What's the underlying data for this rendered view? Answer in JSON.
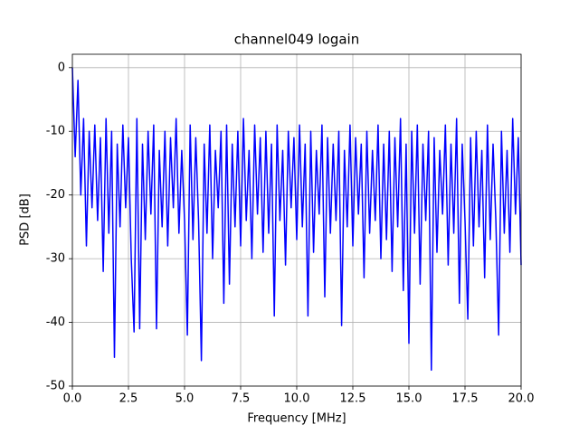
{
  "chart_data": {
    "type": "line",
    "title": "channel049 logain",
    "xlabel": "Frequency [MHz]",
    "ylabel": "PSD [dB]",
    "grid": true,
    "xlim": [
      0,
      20
    ],
    "ylim": [
      -50,
      2.1
    ],
    "xticks": [
      {
        "value": 0,
        "label": "0.0"
      },
      {
        "value": 2.5,
        "label": "2.5"
      },
      {
        "value": 5,
        "label": "5.0"
      },
      {
        "value": 7.5,
        "label": "7.5"
      },
      {
        "value": 10,
        "label": "10.0"
      },
      {
        "value": 12.5,
        "label": "12.5"
      },
      {
        "value": 15,
        "label": "15.0"
      },
      {
        "value": 17.5,
        "label": "17.5"
      },
      {
        "value": 20,
        "label": "20.0"
      }
    ],
    "yticks": [
      0,
      -10,
      -20,
      -30,
      -40,
      -50
    ],
    "x": [
      0,
      0.125,
      0.25,
      0.375,
      0.5,
      0.625,
      0.75,
      0.875,
      1,
      1.125,
      1.25,
      1.375,
      1.5,
      1.625,
      1.75,
      1.875,
      2,
      2.125,
      2.25,
      2.375,
      2.5,
      2.625,
      2.75,
      2.875,
      3,
      3.125,
      3.25,
      3.375,
      3.5,
      3.625,
      3.75,
      3.875,
      4,
      4.125,
      4.25,
      4.375,
      4.5,
      4.625,
      4.75,
      4.875,
      5,
      5.125,
      5.25,
      5.375,
      5.5,
      5.625,
      5.75,
      5.875,
      6,
      6.125,
      6.25,
      6.375,
      6.5,
      6.625,
      6.75,
      6.875,
      7,
      7.125,
      7.25,
      7.375,
      7.5,
      7.625,
      7.75,
      7.875,
      8,
      8.125,
      8.25,
      8.375,
      8.5,
      8.625,
      8.75,
      8.875,
      9,
      9.125,
      9.25,
      9.375,
      9.5,
      9.625,
      9.75,
      9.875,
      10,
      10.125,
      10.25,
      10.375,
      10.5,
      10.625,
      10.75,
      10.875,
      11,
      11.125,
      11.25,
      11.375,
      11.5,
      11.625,
      11.75,
      11.875,
      12,
      12.125,
      12.25,
      12.375,
      12.5,
      12.625,
      12.75,
      12.875,
      13,
      13.125,
      13.25,
      13.375,
      13.5,
      13.625,
      13.75,
      13.875,
      14,
      14.125,
      14.25,
      14.375,
      14.5,
      14.625,
      14.75,
      14.875,
      15,
      15.125,
      15.25,
      15.375,
      15.5,
      15.625,
      15.75,
      15.875,
      16,
      16.125,
      16.25,
      16.375,
      16.5,
      16.625,
      16.75,
      16.875,
      17,
      17.125,
      17.25,
      17.375,
      17.5,
      17.625,
      17.75,
      17.875,
      18,
      18.125,
      18.25,
      18.375,
      18.5,
      18.625,
      18.75,
      18.875,
      19,
      19.125,
      19.25,
      19.375,
      19.5,
      19.625,
      19.75,
      19.875,
      20
    ],
    "series": [
      {
        "color": "#0000ff",
        "values": [
          0,
          -14,
          -2,
          -20,
          -8,
          -28,
          -10,
          -22,
          -9,
          -24,
          -11,
          -32,
          -8,
          -26,
          -10,
          -45.5,
          -12,
          -25,
          -9,
          -22,
          -11,
          -30,
          -41.5,
          -8,
          -41,
          -12,
          -27,
          -10,
          -23,
          -9,
          -41,
          -13,
          -25,
          -10,
          -28,
          -11,
          -22,
          -8,
          -26,
          -13,
          -24,
          -42,
          -9,
          -27,
          -11,
          -24,
          -46,
          -12,
          -26,
          -9,
          -30,
          -13,
          -22,
          -10,
          -37,
          -9,
          -34,
          -12,
          -25,
          -10,
          -28,
          -8,
          -24,
          -13,
          -30,
          -9,
          -23,
          -11,
          -29,
          -10,
          -26,
          -12,
          -39,
          -9,
          -24,
          -13,
          -31,
          -10,
          -22,
          -11,
          -27,
          -9,
          -25,
          -12,
          -39,
          -10,
          -29,
          -13,
          -23,
          -9,
          -36,
          -11,
          -26,
          -12,
          -24,
          -10,
          -40.5,
          -13,
          -25,
          -9,
          -28,
          -11,
          -23,
          -12,
          -33,
          -10,
          -26,
          -13,
          -24,
          -9,
          -30,
          -12,
          -27,
          -10,
          -32,
          -11,
          -25,
          -8,
          -35,
          -12,
          -43.3,
          -10,
          -26,
          -9,
          -34,
          -12,
          -24,
          -10,
          -47.5,
          -11,
          -29,
          -13,
          -23,
          -9,
          -31,
          -12,
          -26,
          -8,
          -37,
          -12,
          -24,
          -39.5,
          -11,
          -28,
          -10,
          -25,
          -13,
          -33,
          -9,
          -27,
          -12,
          -24,
          -42,
          -10,
          -26,
          -13,
          -29,
          -8,
          -23,
          -11,
          -31
        ]
      }
    ]
  }
}
